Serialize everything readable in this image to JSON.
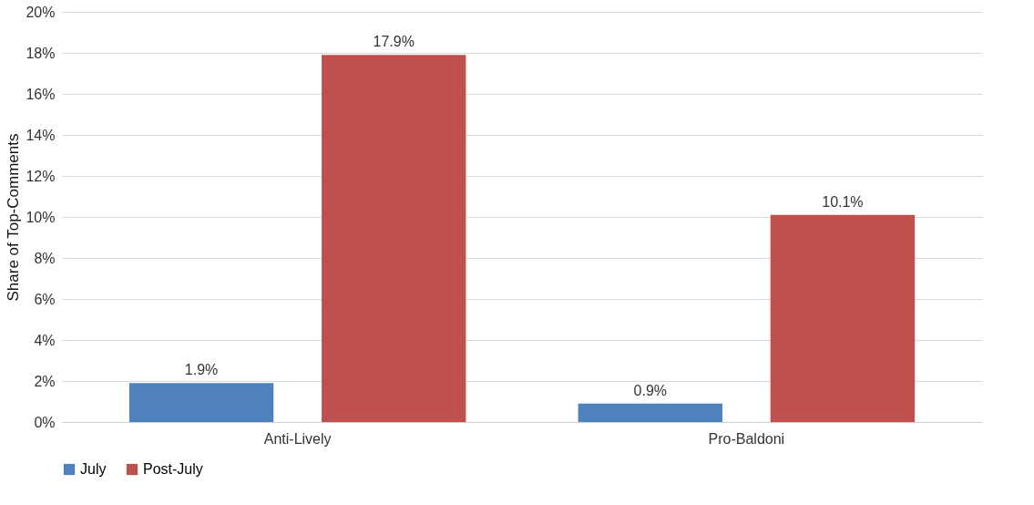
{
  "chart_data": {
    "type": "bar",
    "ylabel": "Share of Top-Comments",
    "categories": [
      "Anti-Lively",
      "Pro-Baldoni"
    ],
    "series": [
      {
        "name": "July",
        "color": "#4f81bd",
        "values": [
          1.9,
          0.9
        ],
        "value_labels": [
          "1.9%",
          "0.9%"
        ]
      },
      {
        "name": "Post-July",
        "color": "#c0504d",
        "values": [
          17.9,
          10.1
        ],
        "value_labels": [
          "17.9%",
          "10.1%"
        ]
      }
    ],
    "ylim": [
      0,
      20
    ],
    "yticks": [
      {
        "value": 0,
        "label": "0%"
      },
      {
        "value": 2,
        "label": "2%"
      },
      {
        "value": 4,
        "label": "4%"
      },
      {
        "value": 6,
        "label": "6%"
      },
      {
        "value": 8,
        "label": "8%"
      },
      {
        "value": 10,
        "label": "10%"
      },
      {
        "value": 12,
        "label": "12%"
      },
      {
        "value": 14,
        "label": "14%"
      },
      {
        "value": 16,
        "label": "16%"
      },
      {
        "value": 18,
        "label": "18%"
      },
      {
        "value": 20,
        "label": "20%"
      }
    ],
    "grid": "y",
    "legend": "bottom"
  }
}
